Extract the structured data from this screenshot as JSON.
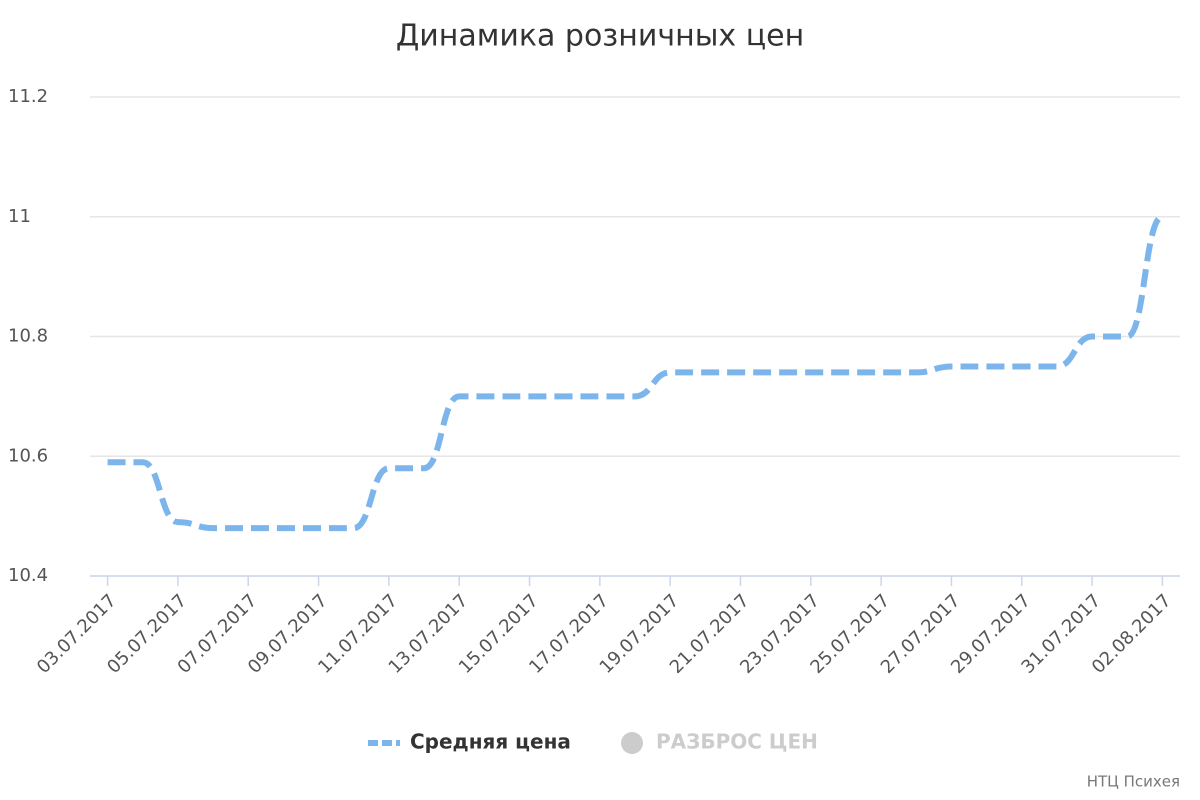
{
  "chart_data": {
    "type": "line",
    "title": "Динамика розничных цен",
    "categories": [
      "03.07.2017",
      null,
      "05.07.2017",
      null,
      "07.07.2017",
      null,
      "09.07.2017",
      null,
      "11.07.2017",
      null,
      "13.07.2017",
      null,
      "15.07.2017",
      null,
      "17.07.2017",
      null,
      "19.07.2017",
      null,
      "21.07.2017",
      null,
      "23.07.2017",
      null,
      "25.07.2017",
      null,
      "27.07.2017",
      null,
      "29.07.2017",
      null,
      "31.07.2017",
      null,
      "02.08.2017"
    ],
    "series": [
      {
        "name": "Средняя цена",
        "color": "#7cb5ec",
        "values": [
          10.59,
          10.59,
          10.49,
          10.48,
          10.48,
          10.48,
          10.48,
          10.48,
          10.58,
          10.58,
          10.7,
          10.7,
          10.7,
          10.7,
          10.7,
          10.7,
          10.74,
          10.74,
          10.74,
          10.74,
          10.74,
          10.74,
          10.74,
          10.74,
          10.75,
          10.75,
          10.75,
          10.75,
          10.8,
          10.8,
          11
        ]
      },
      {
        "name": "РАЗБРОС ЦЕН",
        "color": "#cccccc",
        "visible": false
      }
    ],
    "ylim": [
      10.4,
      11.2
    ],
    "yticks": [
      10.4,
      10.6,
      10.8,
      11,
      11.2
    ],
    "grid": true,
    "credit": "НТЦ Психея"
  }
}
